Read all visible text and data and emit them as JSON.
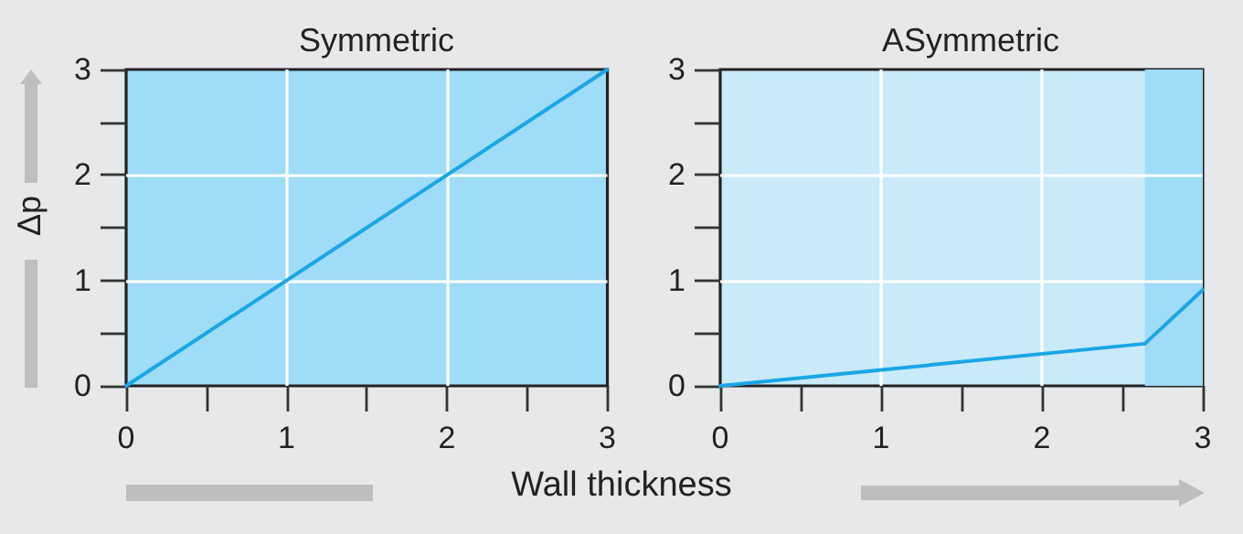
{
  "chart_data": [
    {
      "type": "line",
      "title": "Symmetric",
      "ylabel": "Δp",
      "xlabel": "Wall thickness",
      "series": [
        {
          "color": "#1ba6e6",
          "x": [
            0,
            3
          ],
          "values": [
            0,
            3
          ]
        }
      ],
      "xlim": [
        0,
        3
      ],
      "ylim": [
        0,
        3
      ],
      "xticks": [
        0,
        {
          "value": 0.5,
          "label": null
        },
        1,
        {
          "value": 1.5,
          "label": null
        },
        2,
        {
          "value": 2.5,
          "label": null
        },
        3
      ],
      "yticks": [
        0,
        {
          "value": 0.5,
          "label": null
        },
        1,
        {
          "value": 1.5,
          "label": null
        },
        2,
        {
          "value": 2.5,
          "label": null
        },
        3
      ],
      "grid": true,
      "marker": "none",
      "line_style": "solid"
    },
    {
      "type": "line",
      "title": "ASymmetric",
      "series": [
        {
          "color": "#1ba6e6",
          "x": [
            0,
            2.64,
            3
          ],
          "values": [
            0,
            0.4,
            0.91
          ]
        }
      ],
      "xlim": [
        0,
        3
      ],
      "ylim": [
        0,
        3
      ],
      "xticks": [
        0,
        {
          "value": 0.5,
          "label": null
        },
        1,
        {
          "value": 1.5,
          "label": null
        },
        2,
        {
          "value": 2.5,
          "label": null
        },
        3
      ],
      "yticks": [
        0,
        {
          "value": 0.5,
          "label": null
        },
        1,
        {
          "value": 1.5,
          "label": null
        },
        2,
        {
          "value": 2.5,
          "label": null
        },
        3
      ],
      "bands": [
        {
          "axis": "x",
          "from": 2.64,
          "to": 3,
          "color": "#9fdcf7"
        }
      ],
      "grid": true,
      "marker": "none",
      "line_style": "solid"
    }
  ]
}
